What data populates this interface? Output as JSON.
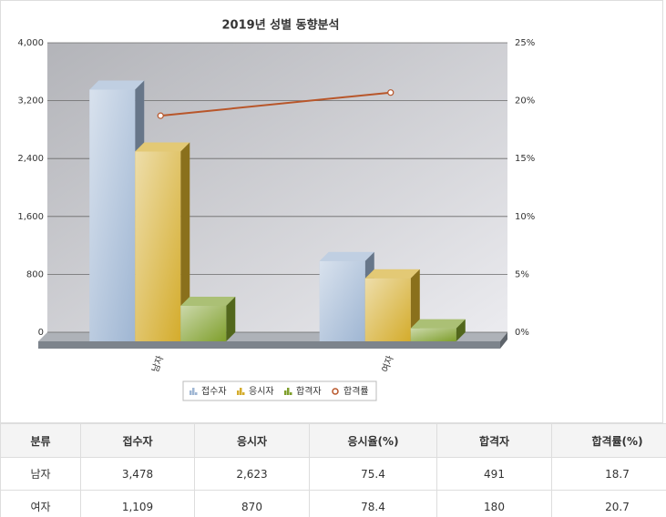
{
  "chart_data": {
    "type": "bar",
    "title": "2019년 성별 동향분석",
    "categories": [
      "남자",
      "여자"
    ],
    "series": [
      {
        "name": "접수자",
        "color": "#9fb6d3",
        "values": [
          3478,
          1109
        ]
      },
      {
        "name": "응시자",
        "color": "#d4ac2c",
        "values": [
          2623,
          870
        ]
      },
      {
        "name": "합격자",
        "color": "#7f9f2c",
        "values": [
          491,
          180
        ]
      },
      {
        "name": "합격률",
        "color": "#b8562a",
        "type": "line",
        "axis": "y2",
        "values": [
          18.7,
          20.7
        ]
      }
    ],
    "ylim": [
      0,
      4000
    ],
    "yticks": [
      0,
      800,
      {
        "value": 1600,
        "label": "1,600"
      },
      {
        "value": 2400,
        "label": "2,400"
      },
      {
        "value": 3200,
        "label": "3,200"
      },
      {
        "value": 4000,
        "label": "4,000"
      }
    ],
    "y2lim": [
      0,
      25
    ],
    "y2ticks": [
      {
        "value": 0,
        "label": "0%"
      },
      {
        "value": 5,
        "label": "5%"
      },
      {
        "value": 10,
        "label": "10%"
      },
      {
        "value": 15,
        "label": "15%"
      },
      {
        "value": 20,
        "label": "20%"
      },
      {
        "value": 25,
        "label": "25%"
      }
    ],
    "grid": true,
    "legend": "bottom"
  },
  "table": {
    "headers": [
      "분류",
      "접수자",
      "응시자",
      "응시율(%)",
      "합격자",
      "합격률(%)"
    ],
    "rows": [
      [
        "남자",
        "3,478",
        "2,623",
        "75.4",
        "491",
        "18.7"
      ],
      [
        "여자",
        "1,109",
        "870",
        "78.4",
        "180",
        "20.7"
      ]
    ]
  }
}
